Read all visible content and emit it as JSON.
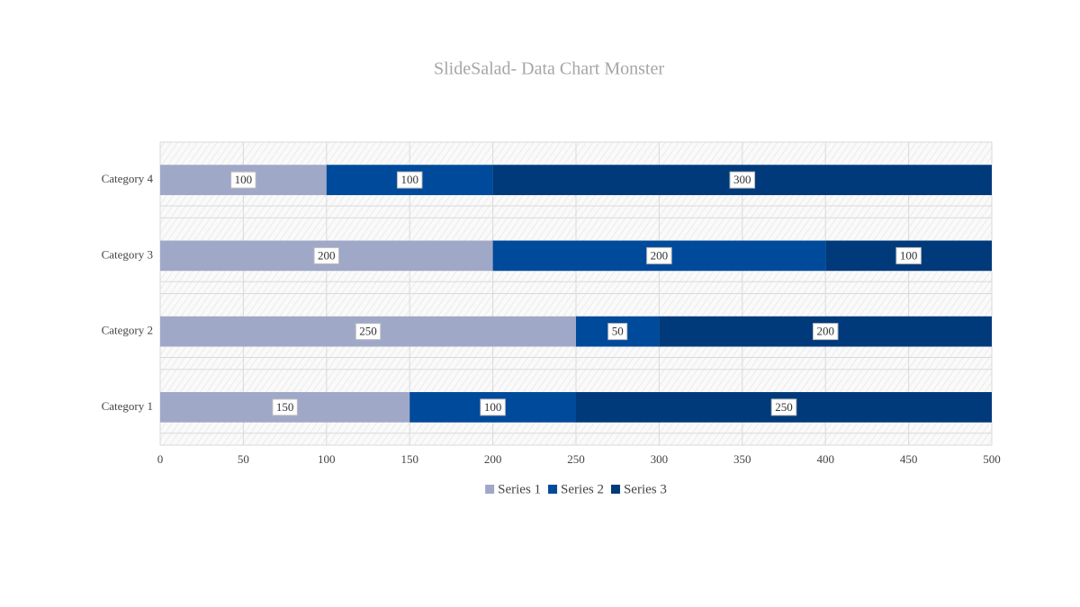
{
  "chart_data": {
    "type": "bar",
    "horizontal": true,
    "stacked": true,
    "title": "SlideSalad- Data Chart Monster",
    "categories": [
      "Category 1",
      "Category 2",
      "Category 3",
      "Category 4"
    ],
    "series": [
      {
        "name": "Series 1",
        "color": "#a0a8c8",
        "values": [
          150,
          250,
          200,
          100
        ]
      },
      {
        "name": "Series 2",
        "color": "#004a9b",
        "values": [
          100,
          50,
          200,
          100
        ]
      },
      {
        "name": "Series 3",
        "color": "#003a7a",
        "values": [
          250,
          200,
          100,
          300
        ]
      }
    ],
    "xlim": [
      0,
      500
    ],
    "xticks": [
      0,
      50,
      100,
      150,
      200,
      250,
      300,
      350,
      400,
      450,
      500
    ],
    "grid": true,
    "legend": "bottom",
    "data_labels": true
  }
}
